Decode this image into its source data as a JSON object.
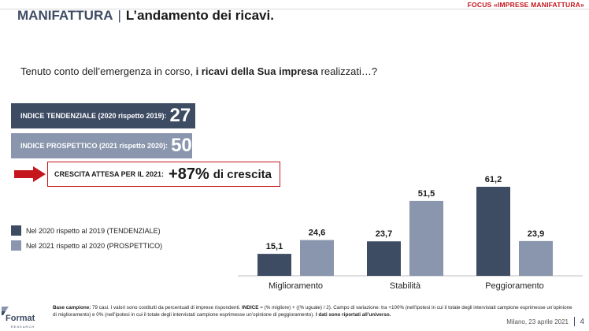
{
  "header": {
    "focus_tag": "FOCUS «IMPRESE MANIFATTURA»",
    "title_main": "MANIFATTURA",
    "title_sep": "|",
    "title_sub": "L’andamento dei ricavi."
  },
  "question": {
    "prefix": "Tenuto conto dell’emergenza in corso, ",
    "bold": "i ricavi della Sua impresa",
    "suffix": " realizzati…?"
  },
  "indices": {
    "trend_label": "INDICE TENDENZIALE (2020 rispetto 2019):",
    "trend_value": "27",
    "forecast_label": "INDICE PROSPETTICO (2021 rispetto 2020):",
    "forecast_value": "50"
  },
  "growth": {
    "label": "CRESCITA ATTESA PER IL 2021:",
    "value": "+87%",
    "suffix": "di crescita"
  },
  "legend": {
    "trend": "Nel 2020 rispetto al 2019 (TENDENZIALE)",
    "forecast": "Nel 2021 rispetto al 2020 (PROSPETTICO)"
  },
  "colors": {
    "dark": "#3d4b63",
    "light": "#8996ad",
    "accent": "#c4161c"
  },
  "chart_data": {
    "type": "bar",
    "categories": [
      "Miglioramento",
      "Stabilità",
      "Peggioramento"
    ],
    "series": [
      {
        "name": "Nel 2020 rispetto al 2019 (TENDENZIALE)",
        "values": [
          15.1,
          23.7,
          61.2
        ],
        "labels": [
          "15,1",
          "23,7",
          "61,2"
        ]
      },
      {
        "name": "Nel 2021 rispetto al 2020 (PROSPETTICO)",
        "values": [
          24.6,
          51.5,
          23.9
        ],
        "labels": [
          "24,6",
          "51,5",
          "23,9"
        ]
      }
    ],
    "title": "",
    "xlabel": "",
    "ylabel": "",
    "ylim": [
      0,
      61.2
    ]
  },
  "footer": {
    "base_label": "Base campione:",
    "base_text": " 79 casi. I valori sono costituiti da percentuali di imprese rispondenti. ",
    "index_label": "INDICE",
    "index_text": " = (% migliore) + ((% uguale) / 2). Campo di variazione: tra +100% (nell’ipotesi in cui il totale degli intervistati campione esprimesse un’opinione di miglioramento) e 0% (nell’ipotesi in cui il totale degli intervistati campione esprimesse un’opinione di peggioramento). ",
    "note_bold": "I dati sono riportati all’universo.",
    "place_date": "Milano, 23 aprile 2021",
    "page": "4",
    "logo": "Format",
    "logo_sub": "RESEARCH"
  }
}
